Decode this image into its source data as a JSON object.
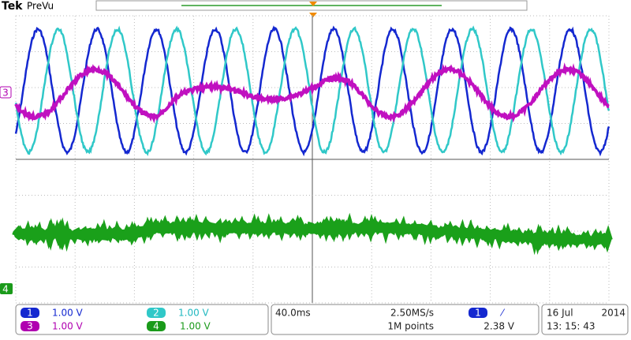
{
  "header": {
    "brand": "Tek",
    "mode": "PreVu"
  },
  "markers": {
    "ch3": "3",
    "ch4": "4"
  },
  "channels": [
    {
      "id": "1",
      "scale": "1.00 V"
    },
    {
      "id": "2",
      "scale": "1.00 V"
    },
    {
      "id": "3",
      "scale": "1.00 V"
    },
    {
      "id": "4",
      "scale": "1.00 V"
    }
  ],
  "timebase": {
    "time_per_div": "40.0ms",
    "sample_rate": "2.50MS/s",
    "record_length": "1M points"
  },
  "trigger": {
    "source": "1",
    "slope": "⁄",
    "level": "2.38 V"
  },
  "clock": {
    "date": "16 Jul",
    "year": "2014",
    "time": "13: 15: 43"
  }
}
